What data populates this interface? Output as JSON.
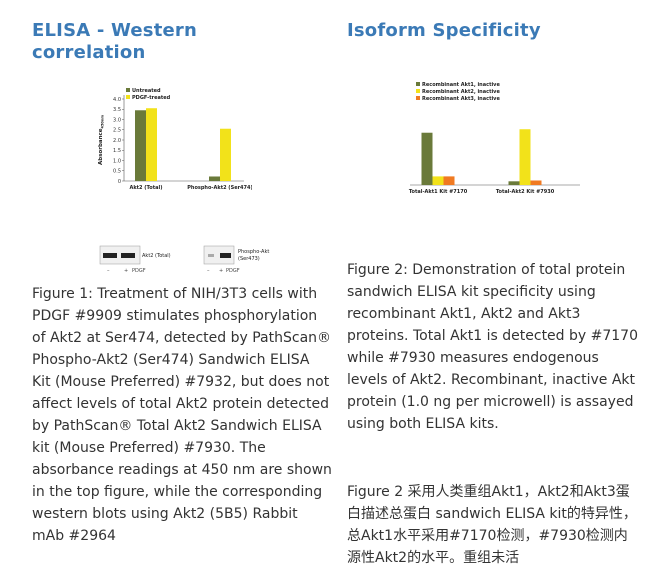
{
  "left": {
    "title": "ELISA - Western correlation",
    "caption": "Figure 1: Treatment of NIH/3T3 cells with PDGF #9909 stimulates phosphorylation of Akt2 at Ser474, detected by PathScan® Phospho-Akt2 (Ser474) Sandwich ELISA Kit (Mouse Preferred) #7932, but does not affect levels of total Akt2 protein detected by PathScan® Total Akt2 Sandwich ELISA kit (Mouse Preferred) #7930. The absorbance readings at 450 nm are shown in the top figure, while the corresponding western blots using Akt2 (5B5) Rabbit mAb #2964",
    "chart_data": {
      "type": "bar",
      "categories": [
        "Akt2 (Total)",
        "Phospho-Akt2 (Ser474)"
      ],
      "series": [
        {
          "name": "Untreated",
          "values": [
            3.45,
            0.22
          ]
        },
        {
          "name": "PDGF-treated",
          "values": [
            3.55,
            2.55
          ]
        }
      ],
      "ylabel": "Absorbance450nm",
      "ylabel_main": "Absorbance",
      "ylabel_sub": "450nm",
      "yticks": [
        "0",
        "0.5",
        "1.0",
        "1.5",
        "2.0",
        "2.5",
        "3.0",
        "3.5",
        "4.0"
      ],
      "ylim": [
        0,
        4.0
      ],
      "legend_position": "top-left",
      "colors": [
        "#6a7a3a",
        "#f2e21a"
      ]
    },
    "blots": [
      {
        "label": "Akt2 (Total)",
        "lanes": [
          "–",
          "+",
          "PDGF"
        ]
      },
      {
        "label": "Phospho-Akt (Ser473)",
        "label_line1": "Phospho-Akt",
        "label_line2": "(Ser473)",
        "lanes": [
          "–",
          "+",
          "PDGF"
        ]
      }
    ]
  },
  "right": {
    "title": "Isoform Specificity",
    "caption": "Figure 2: Demonstration of total protein sandwich ELISA kit specificity using recombinant Akt1, Akt2 and Akt3 proteins. Total Akt1 is detected by #7170 while #7930 measures endogenous levels of Akt2. Recombinant, inactive Akt protein (1.0 ng per microwell) is assayed using both ELISA kits.",
    "caption_cn": "Figure 2 采用人类重组Akt1，Akt2和Akt3蛋白描述总蛋白 sandwich ELISA kit的特异性，总Akt1水平采用#7170检测，#7930检测内源性Akt2的水平。重组未活",
    "chart_data": {
      "type": "bar",
      "categories": [
        "Total-Akt1 Kit #7170",
        "Total-Akt2 Kit #7930"
      ],
      "series": [
        {
          "name": "Recombinant Akt1, inactive",
          "values": [
            2.55,
            0.18
          ]
        },
        {
          "name": "Recombinant Akt2, inactive",
          "values": [
            0.42,
            2.72
          ]
        },
        {
          "name": "Recombinant Akt3, inactive",
          "values": [
            0.42,
            0.22
          ]
        }
      ],
      "ylim": [
        0,
        4.0
      ],
      "legend_position": "top-left",
      "grid": false,
      "colors": [
        "#6a7a3a",
        "#f2e21a",
        "#f07a22"
      ]
    }
  }
}
